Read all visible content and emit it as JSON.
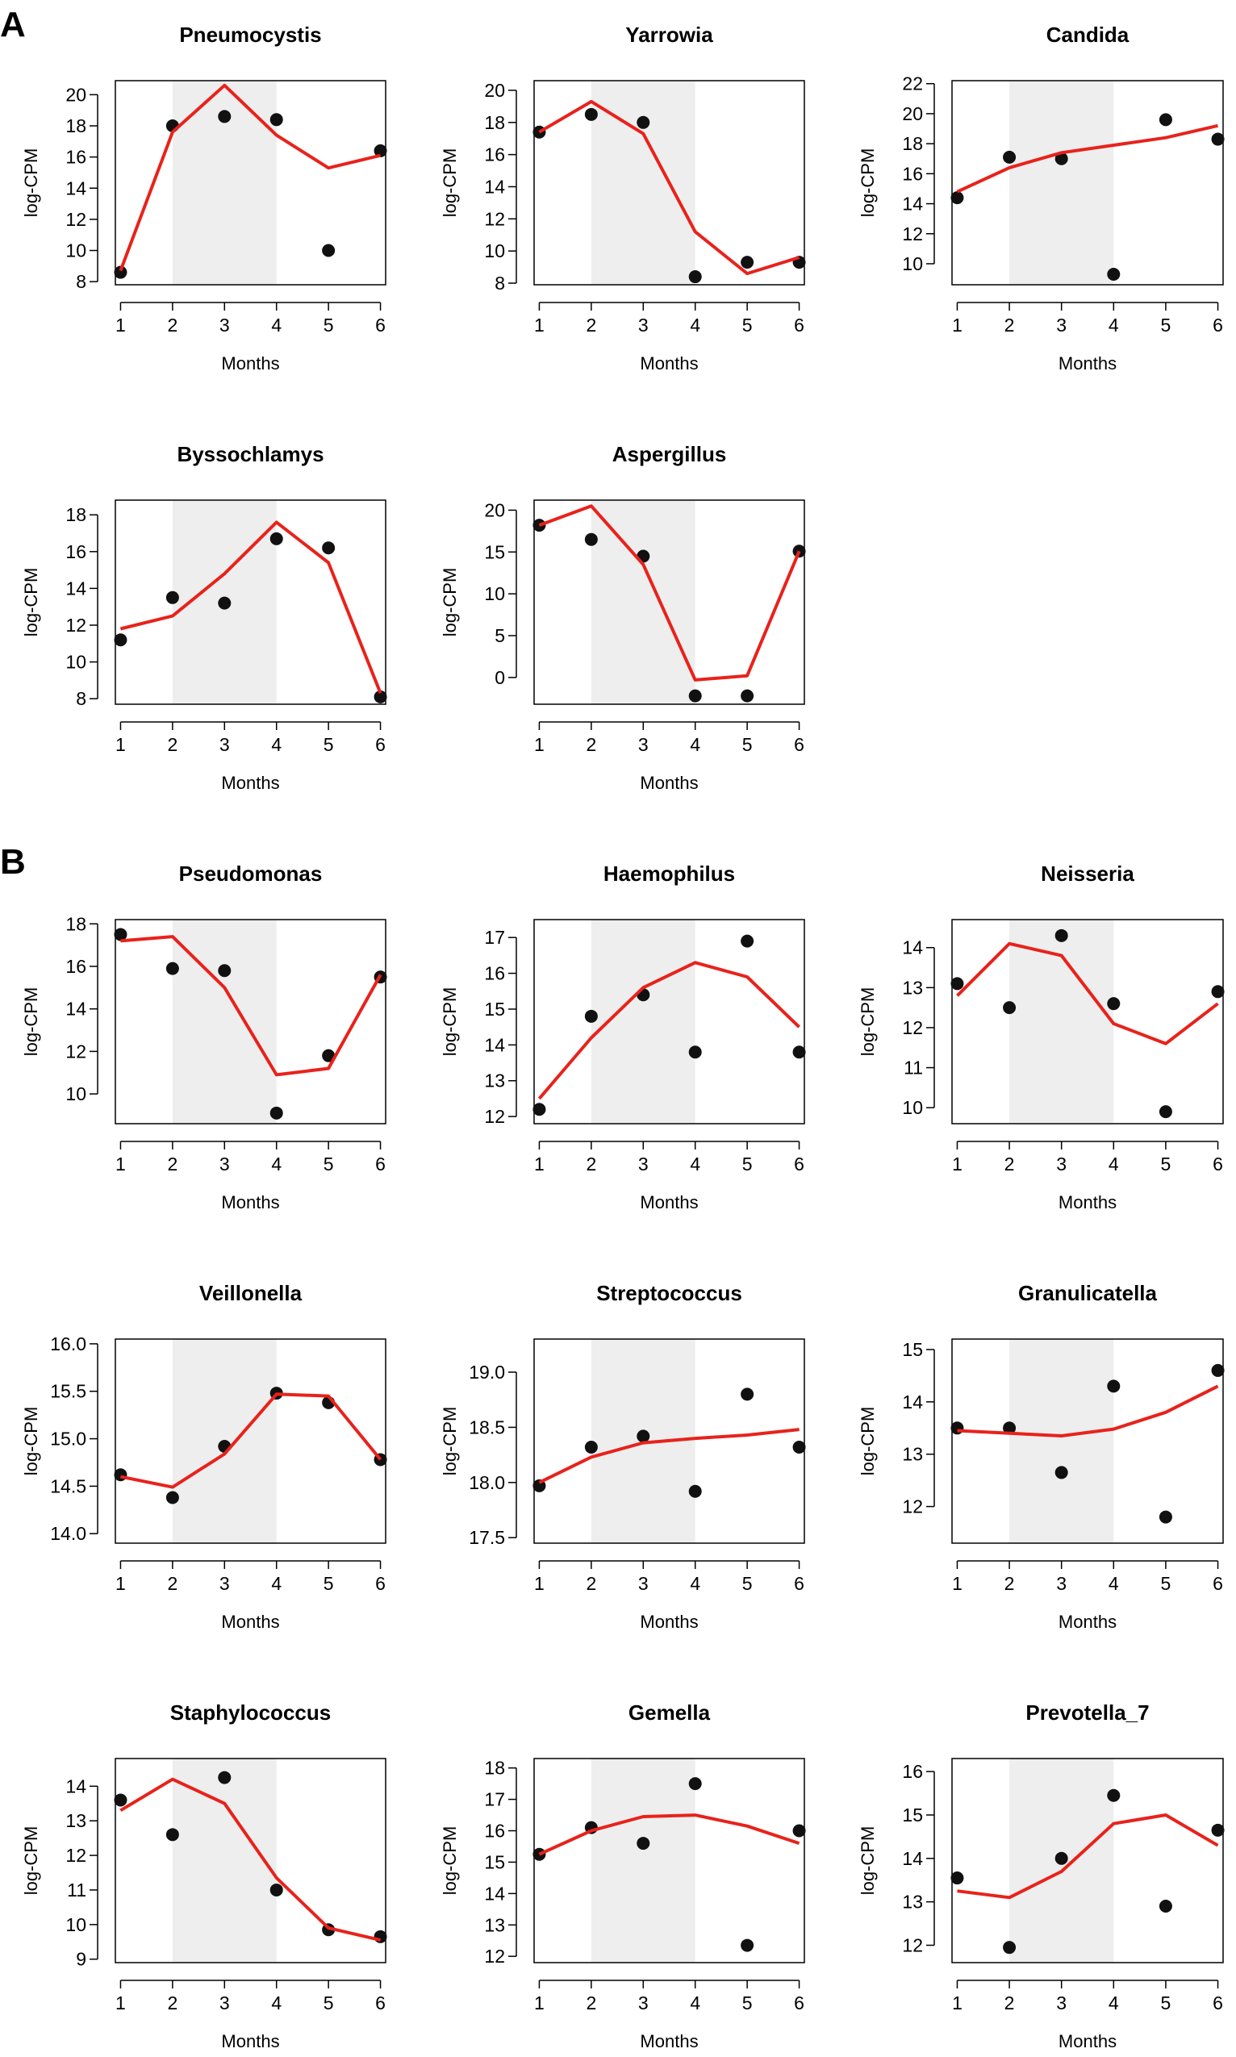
{
  "figure": {
    "panel_labels": [
      "A",
      "B"
    ]
  },
  "chart_data": [
    {
      "type": "scatter",
      "panel": "A",
      "title": "Pneumocystis",
      "xlabel": "Months",
      "ylabel": "log-CPM",
      "x": [
        1,
        2,
        3,
        4,
        5,
        6
      ],
      "xticks": [
        1,
        2,
        3,
        4,
        5,
        6
      ],
      "shaded_x": [
        2,
        4
      ],
      "ylim": [
        7.8,
        20.9
      ],
      "yticks": [
        8,
        10,
        12,
        14,
        16,
        18,
        20
      ],
      "points": [
        8.6,
        18.0,
        18.6,
        18.4,
        10.0,
        16.4
      ],
      "fit": [
        8.7,
        17.6,
        20.6,
        17.4,
        15.3,
        16.1
      ]
    },
    {
      "type": "scatter",
      "panel": "A",
      "title": "Yarrowia",
      "xlabel": "Months",
      "ylabel": "log-CPM",
      "x": [
        1,
        2,
        3,
        4,
        5,
        6
      ],
      "xticks": [
        1,
        2,
        3,
        4,
        5,
        6
      ],
      "shaded_x": [
        2,
        4
      ],
      "ylim": [
        7.9,
        20.6
      ],
      "yticks": [
        8,
        10,
        12,
        14,
        16,
        18,
        20
      ],
      "points": [
        17.4,
        18.5,
        18.0,
        8.4,
        9.3,
        9.3
      ],
      "fit": [
        17.4,
        19.3,
        17.3,
        11.2,
        8.6,
        9.6
      ]
    },
    {
      "type": "scatter",
      "panel": "A",
      "title": "Candida",
      "xlabel": "Months",
      "ylabel": "log-CPM",
      "x": [
        1,
        2,
        3,
        4,
        5,
        6
      ],
      "xticks": [
        1,
        2,
        3,
        4,
        5,
        6
      ],
      "shaded_x": [
        2,
        4
      ],
      "ylim": [
        8.6,
        22.2
      ],
      "yticks": [
        10,
        12,
        14,
        16,
        18,
        20,
        22
      ],
      "points": [
        14.4,
        17.1,
        17.0,
        9.3,
        19.6,
        18.3
      ],
      "fit": [
        14.8,
        16.4,
        17.4,
        17.9,
        18.4,
        19.2
      ]
    },
    {
      "type": "scatter",
      "panel": "A",
      "title": "Byssochlamys",
      "xlabel": "Months",
      "ylabel": "log-CPM",
      "x": [
        1,
        2,
        3,
        4,
        5,
        6
      ],
      "xticks": [
        1,
        2,
        3,
        4,
        5,
        6
      ],
      "shaded_x": [
        2,
        4
      ],
      "ylim": [
        7.7,
        18.8
      ],
      "yticks": [
        8,
        10,
        12,
        14,
        16,
        18
      ],
      "points": [
        11.2,
        13.5,
        13.2,
        16.7,
        16.2,
        8.1
      ],
      "fit": [
        11.8,
        12.5,
        14.8,
        17.6,
        15.4,
        8.3
      ]
    },
    {
      "type": "scatter",
      "panel": "A",
      "title": "Aspergillus",
      "xlabel": "Months",
      "ylabel": "log-CPM",
      "x": [
        1,
        2,
        3,
        4,
        5,
        6
      ],
      "xticks": [
        1,
        2,
        3,
        4,
        5,
        6
      ],
      "shaded_x": [
        2,
        4
      ],
      "ylim": [
        -3.2,
        21.2
      ],
      "yticks": [
        0,
        5,
        10,
        15,
        20
      ],
      "points": [
        18.2,
        16.5,
        14.5,
        -2.2,
        -2.2,
        15.1
      ],
      "fit": [
        18.2,
        20.5,
        13.5,
        -0.3,
        0.2,
        15.1
      ]
    },
    {
      "type": "scatter",
      "panel": "B",
      "title": "Pseudomonas",
      "xlabel": "Months",
      "ylabel": "log-CPM",
      "x": [
        1,
        2,
        3,
        4,
        5,
        6
      ],
      "xticks": [
        1,
        2,
        3,
        4,
        5,
        6
      ],
      "shaded_x": [
        2,
        4
      ],
      "ylim": [
        8.6,
        18.2
      ],
      "yticks": [
        10,
        12,
        14,
        16,
        18
      ],
      "points": [
        17.5,
        15.9,
        15.8,
        9.1,
        11.8,
        15.5
      ],
      "fit": [
        17.2,
        17.4,
        15.0,
        10.9,
        11.2,
        15.6
      ]
    },
    {
      "type": "scatter",
      "panel": "B",
      "title": "Haemophilus",
      "xlabel": "Months",
      "ylabel": "log-CPM",
      "x": [
        1,
        2,
        3,
        4,
        5,
        6
      ],
      "xticks": [
        1,
        2,
        3,
        4,
        5,
        6
      ],
      "shaded_x": [
        2,
        4
      ],
      "ylim": [
        11.8,
        17.5
      ],
      "yticks": [
        12,
        13,
        14,
        15,
        16,
        17
      ],
      "points": [
        12.2,
        14.8,
        15.4,
        13.8,
        16.9,
        13.8
      ],
      "fit": [
        12.5,
        14.2,
        15.6,
        16.3,
        15.9,
        14.5
      ]
    },
    {
      "type": "scatter",
      "panel": "B",
      "title": "Neisseria",
      "xlabel": "Months",
      "ylabel": "log-CPM",
      "x": [
        1,
        2,
        3,
        4,
        5,
        6
      ],
      "xticks": [
        1,
        2,
        3,
        4,
        5,
        6
      ],
      "shaded_x": [
        2,
        4
      ],
      "ylim": [
        9.6,
        14.7
      ],
      "yticks": [
        10,
        11,
        12,
        13,
        14
      ],
      "points": [
        13.1,
        12.5,
        14.3,
        12.6,
        9.9,
        12.9
      ],
      "fit": [
        12.8,
        14.1,
        13.8,
        12.1,
        11.6,
        12.6
      ]
    },
    {
      "type": "scatter",
      "panel": "B",
      "title": "Veillonella",
      "xlabel": "Months",
      "ylabel": "log-CPM",
      "x": [
        1,
        2,
        3,
        4,
        5,
        6
      ],
      "xticks": [
        1,
        2,
        3,
        4,
        5,
        6
      ],
      "shaded_x": [
        2,
        4
      ],
      "ylim": [
        13.9,
        16.05
      ],
      "yticks": [
        14.0,
        14.5,
        15.0,
        15.5,
        16.0
      ],
      "points": [
        14.62,
        14.38,
        14.92,
        15.48,
        15.38,
        14.78
      ],
      "fit": [
        14.6,
        14.49,
        14.84,
        15.47,
        15.45,
        14.78
      ]
    },
    {
      "type": "scatter",
      "panel": "B",
      "title": "Streptococcus",
      "xlabel": "Months",
      "ylabel": "log-CPM",
      "x": [
        1,
        2,
        3,
        4,
        5,
        6
      ],
      "xticks": [
        1,
        2,
        3,
        4,
        5,
        6
      ],
      "shaded_x": [
        2,
        4
      ],
      "ylim": [
        17.45,
        19.3
      ],
      "yticks": [
        17.5,
        18.0,
        18.5,
        19.0
      ],
      "points": [
        17.97,
        18.32,
        18.42,
        17.92,
        18.8,
        18.32
      ],
      "fit": [
        18.0,
        18.23,
        18.36,
        18.4,
        18.43,
        18.48
      ]
    },
    {
      "type": "scatter",
      "panel": "B",
      "title": "Granulicatella",
      "xlabel": "Months",
      "ylabel": "log-CPM",
      "x": [
        1,
        2,
        3,
        4,
        5,
        6
      ],
      "xticks": [
        1,
        2,
        3,
        4,
        5,
        6
      ],
      "shaded_x": [
        2,
        4
      ],
      "ylim": [
        11.3,
        15.2
      ],
      "yticks": [
        12,
        13,
        14,
        15
      ],
      "points": [
        13.5,
        13.5,
        12.65,
        14.3,
        11.8,
        14.6
      ],
      "fit": [
        13.45,
        13.4,
        13.35,
        13.48,
        13.8,
        14.3
      ]
    },
    {
      "type": "scatter",
      "panel": "B",
      "title": "Staphylococcus",
      "xlabel": "Months",
      "ylabel": "log-CPM",
      "x": [
        1,
        2,
        3,
        4,
        5,
        6
      ],
      "xticks": [
        1,
        2,
        3,
        4,
        5,
        6
      ],
      "shaded_x": [
        2,
        4
      ],
      "ylim": [
        8.9,
        14.8
      ],
      "yticks": [
        9,
        10,
        11,
        12,
        13,
        14
      ],
      "points": [
        13.6,
        12.6,
        14.25,
        11.0,
        9.85,
        9.65
      ],
      "fit": [
        13.3,
        14.2,
        13.5,
        11.35,
        9.9,
        9.55
      ]
    },
    {
      "type": "scatter",
      "panel": "B",
      "title": "Gemella",
      "xlabel": "Months",
      "ylabel": "log-CPM",
      "x": [
        1,
        2,
        3,
        4,
        5,
        6
      ],
      "xticks": [
        1,
        2,
        3,
        4,
        5,
        6
      ],
      "shaded_x": [
        2,
        4
      ],
      "ylim": [
        11.8,
        18.3
      ],
      "yticks": [
        12,
        13,
        14,
        15,
        16,
        17,
        18
      ],
      "points": [
        15.25,
        16.1,
        15.6,
        17.5,
        12.35,
        16.0
      ],
      "fit": [
        15.25,
        16.0,
        16.45,
        16.5,
        16.15,
        15.6
      ]
    },
    {
      "type": "scatter",
      "panel": "B",
      "title": "Prevotella_7",
      "xlabel": "Months",
      "ylabel": "log-CPM",
      "x": [
        1,
        2,
        3,
        4,
        5,
        6
      ],
      "xticks": [
        1,
        2,
        3,
        4,
        5,
        6
      ],
      "shaded_x": [
        2,
        4
      ],
      "ylim": [
        11.6,
        16.3
      ],
      "yticks": [
        12,
        13,
        14,
        15,
        16
      ],
      "points": [
        13.55,
        11.95,
        14.0,
        15.45,
        12.9,
        14.65
      ],
      "fit": [
        13.25,
        13.1,
        13.7,
        14.8,
        15.0,
        14.3
      ]
    }
  ]
}
